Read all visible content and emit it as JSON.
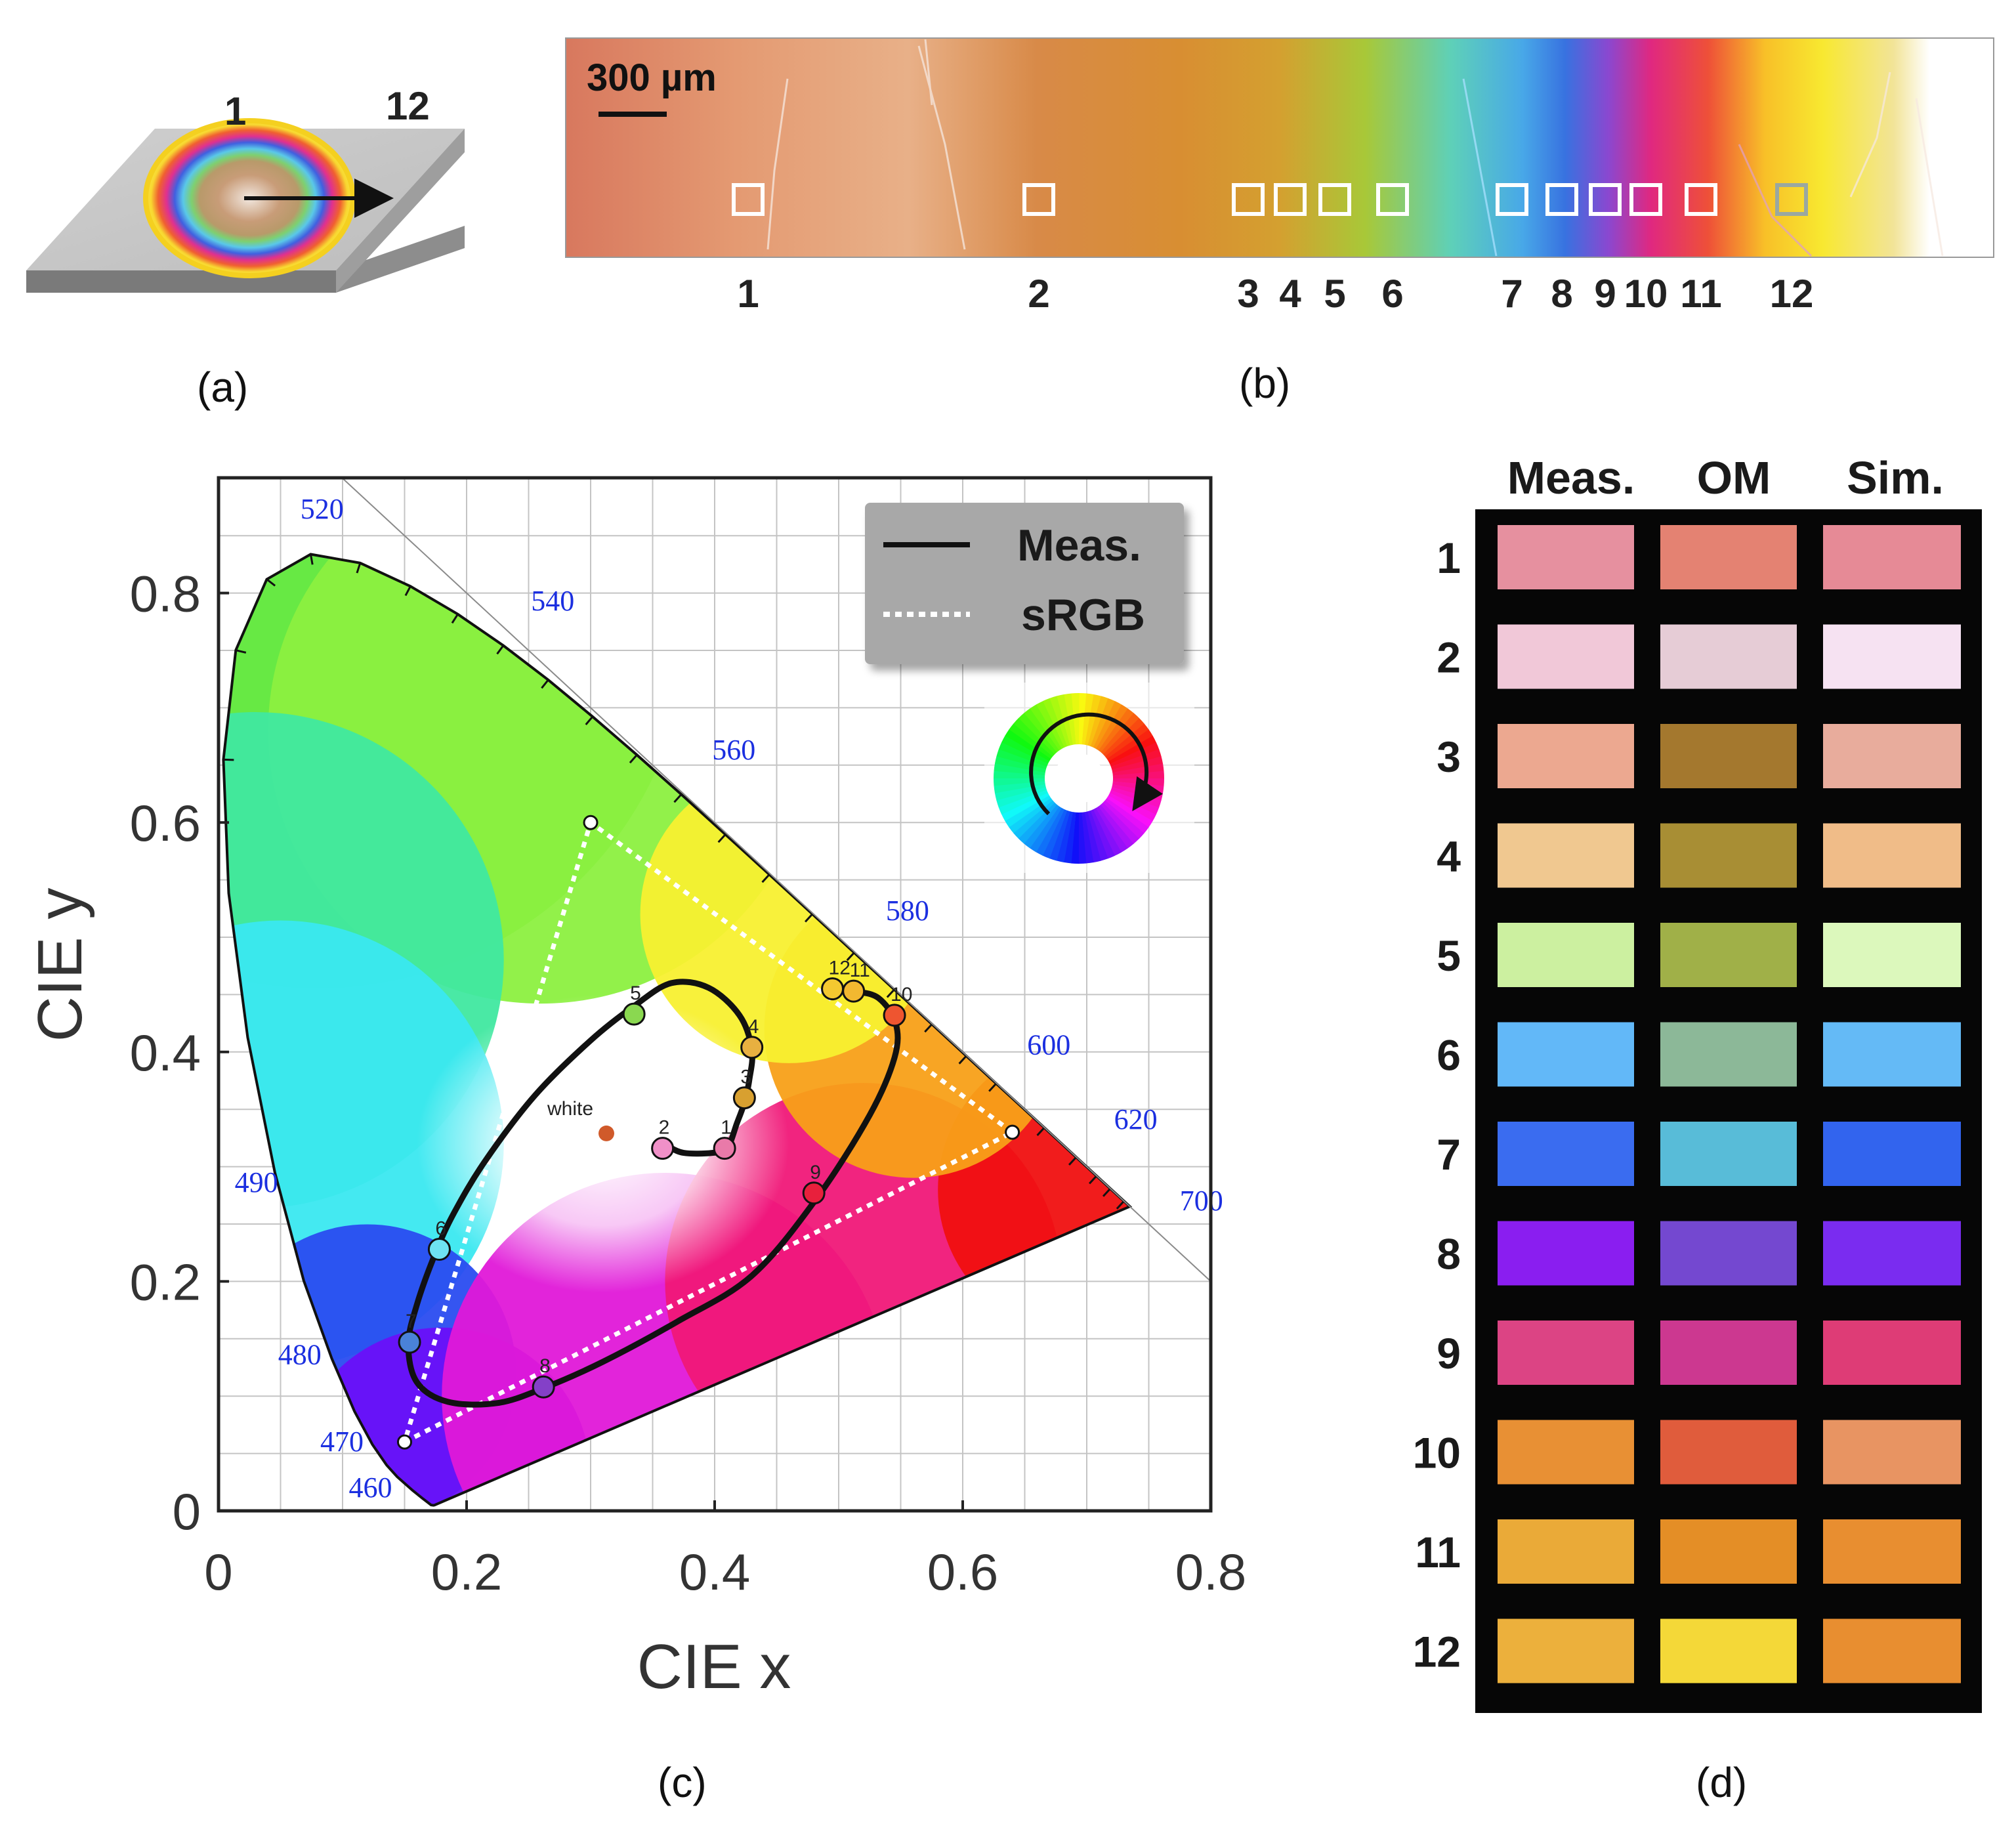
{
  "panels": {
    "a": "(a)",
    "b": "(b)",
    "c": "(c)",
    "d": "(d)"
  },
  "panel_a": {
    "start_label": "1",
    "end_label": "12"
  },
  "panel_b": {
    "scale_bar": "300 µm",
    "positions": [
      "1",
      "2",
      "3",
      "4",
      "5",
      "6",
      "7",
      "8",
      "9",
      "10",
      "11",
      "12"
    ]
  },
  "chart_data": {
    "type": "scatter",
    "title": "",
    "xlabel": "CIE x",
    "ylabel": "CIE y",
    "xlim": [
      0,
      0.8
    ],
    "ylim": [
      0,
      0.9
    ],
    "x_ticks": [
      "0",
      "0.2",
      "0.4",
      "0.6",
      "0.8"
    ],
    "y_ticks": [
      "0",
      "0.2",
      "0.4",
      "0.6",
      "0.8"
    ],
    "grid": true,
    "legend": {
      "position": "top-right",
      "entries": [
        "Meas.",
        "sRGB"
      ]
    },
    "spectral_locus": [
      {
        "nm": 380,
        "x": 0.1741,
        "y": 0.005
      },
      {
        "nm": 400,
        "x": 0.1733,
        "y": 0.0048
      },
      {
        "nm": 420,
        "x": 0.1714,
        "y": 0.0051
      },
      {
        "nm": 440,
        "x": 0.1644,
        "y": 0.0109
      },
      {
        "nm": 450,
        "x": 0.1566,
        "y": 0.0177
      },
      {
        "nm": 460,
        "x": 0.144,
        "y": 0.0297
      },
      {
        "nm": 465,
        "x": 0.1355,
        "y": 0.0399
      },
      {
        "nm": 470,
        "x": 0.1241,
        "y": 0.0578
      },
      {
        "nm": 475,
        "x": 0.1096,
        "y": 0.0868
      },
      {
        "nm": 480,
        "x": 0.0913,
        "y": 0.1327
      },
      {
        "nm": 485,
        "x": 0.0687,
        "y": 0.2007
      },
      {
        "nm": 490,
        "x": 0.0454,
        "y": 0.295
      },
      {
        "nm": 495,
        "x": 0.0235,
        "y": 0.4127
      },
      {
        "nm": 500,
        "x": 0.0082,
        "y": 0.5384
      },
      {
        "nm": 505,
        "x": 0.0039,
        "y": 0.6548
      },
      {
        "nm": 510,
        "x": 0.0139,
        "y": 0.7502
      },
      {
        "nm": 515,
        "x": 0.0389,
        "y": 0.812
      },
      {
        "nm": 520,
        "x": 0.0743,
        "y": 0.8338
      },
      {
        "nm": 525,
        "x": 0.1142,
        "y": 0.8262
      },
      {
        "nm": 530,
        "x": 0.1547,
        "y": 0.8059
      },
      {
        "nm": 535,
        "x": 0.1929,
        "y": 0.7816
      },
      {
        "nm": 540,
        "x": 0.2296,
        "y": 0.7543
      },
      {
        "nm": 545,
        "x": 0.2658,
        "y": 0.7243
      },
      {
        "nm": 550,
        "x": 0.3016,
        "y": 0.6923
      },
      {
        "nm": 555,
        "x": 0.3373,
        "y": 0.6589
      },
      {
        "nm": 560,
        "x": 0.3731,
        "y": 0.6245
      },
      {
        "nm": 565,
        "x": 0.4087,
        "y": 0.5896
      },
      {
        "nm": 570,
        "x": 0.4441,
        "y": 0.5547
      },
      {
        "nm": 575,
        "x": 0.4788,
        "y": 0.5202
      },
      {
        "nm": 580,
        "x": 0.5125,
        "y": 0.4866
      },
      {
        "nm": 585,
        "x": 0.5448,
        "y": 0.4544
      },
      {
        "nm": 590,
        "x": 0.5752,
        "y": 0.4242
      },
      {
        "nm": 595,
        "x": 0.6029,
        "y": 0.3965
      },
      {
        "nm": 600,
        "x": 0.627,
        "y": 0.3725
      },
      {
        "nm": 610,
        "x": 0.6658,
        "y": 0.334
      },
      {
        "nm": 620,
        "x": 0.6915,
        "y": 0.3083
      },
      {
        "nm": 630,
        "x": 0.7079,
        "y": 0.292
      },
      {
        "nm": 640,
        "x": 0.719,
        "y": 0.2809
      },
      {
        "nm": 660,
        "x": 0.73,
        "y": 0.27
      },
      {
        "nm": 700,
        "x": 0.7347,
        "y": 0.2653
      }
    ],
    "wavelength_labels": [
      {
        "text": "460",
        "x": 0.105,
        "y": 0.012
      },
      {
        "text": "470",
        "x": 0.082,
        "y": 0.052
      },
      {
        "text": "480",
        "x": 0.048,
        "y": 0.128
      },
      {
        "text": "490",
        "x": 0.013,
        "y": 0.278
      },
      {
        "text": "520",
        "x": 0.066,
        "y": 0.865
      },
      {
        "text": "540",
        "x": 0.252,
        "y": 0.785
      },
      {
        "text": "560",
        "x": 0.398,
        "y": 0.655
      },
      {
        "text": "580",
        "x": 0.538,
        "y": 0.515
      },
      {
        "text": "600",
        "x": 0.652,
        "y": 0.398
      },
      {
        "text": "620",
        "x": 0.722,
        "y": 0.333
      },
      {
        "text": "700",
        "x": 0.775,
        "y": 0.262
      }
    ],
    "srgb_primaries": {
      "red": [
        0.64,
        0.33
      ],
      "green": [
        0.3,
        0.6
      ],
      "blue": [
        0.15,
        0.06
      ]
    },
    "white_point": {
      "label": "white",
      "x": 0.3127,
      "y": 0.329,
      "color": "#d05a2a"
    },
    "measured_curve": [
      [
        0.362,
        0.318
      ],
      [
        0.375,
        0.312
      ],
      [
        0.398,
        0.312
      ],
      [
        0.41,
        0.316
      ],
      [
        0.418,
        0.338
      ],
      [
        0.424,
        0.356
      ],
      [
        0.428,
        0.376
      ],
      [
        0.43,
        0.402
      ],
      [
        0.42,
        0.432
      ],
      [
        0.395,
        0.456
      ],
      [
        0.365,
        0.46
      ],
      [
        0.335,
        0.44
      ],
      [
        0.3,
        0.41
      ],
      [
        0.255,
        0.362
      ],
      [
        0.215,
        0.305
      ],
      [
        0.19,
        0.26
      ],
      [
        0.175,
        0.225
      ],
      [
        0.16,
        0.18
      ],
      [
        0.153,
        0.145
      ],
      [
        0.16,
        0.112
      ],
      [
        0.185,
        0.095
      ],
      [
        0.225,
        0.094
      ],
      [
        0.262,
        0.107
      ],
      [
        0.31,
        0.13
      ],
      [
        0.37,
        0.165
      ],
      [
        0.43,
        0.205
      ],
      [
        0.482,
        0.272
      ],
      [
        0.525,
        0.345
      ],
      [
        0.545,
        0.395
      ],
      [
        0.546,
        0.425
      ],
      [
        0.532,
        0.447
      ],
      [
        0.512,
        0.453
      ],
      [
        0.492,
        0.455
      ]
    ],
    "measured_points": [
      {
        "label": "1",
        "x": 0.408,
        "y": 0.316,
        "color": "#e97aa9"
      },
      {
        "label": "2",
        "x": 0.358,
        "y": 0.316,
        "color": "#f090c8"
      },
      {
        "label": "3",
        "x": 0.424,
        "y": 0.36,
        "color": "#d8a030"
      },
      {
        "label": "4",
        "x": 0.43,
        "y": 0.404,
        "color": "#e8b040"
      },
      {
        "label": "5",
        "x": 0.335,
        "y": 0.433,
        "color": "#8ad850"
      },
      {
        "label": "6",
        "x": 0.178,
        "y": 0.228,
        "color": "#6ee2f2"
      },
      {
        "label": "7",
        "x": 0.154,
        "y": 0.147,
        "color": "#4a82d8"
      },
      {
        "label": "8",
        "x": 0.262,
        "y": 0.108,
        "color": "#8440c8"
      },
      {
        "label": "9",
        "x": 0.48,
        "y": 0.277,
        "color": "#e8203c"
      },
      {
        "label": "10",
        "x": 0.545,
        "y": 0.432,
        "color": "#ee5530"
      },
      {
        "label": "11",
        "x": 0.512,
        "y": 0.453,
        "color": "#f2b830"
      },
      {
        "label": "12",
        "x": 0.495,
        "y": 0.455,
        "color": "#f4c830"
      }
    ]
  },
  "swatches": {
    "headers": [
      "Meas.",
      "OM",
      "Sim."
    ],
    "rows": [
      {
        "label": "1",
        "colors": [
          "#e6909f",
          "#e48272",
          "#e68a96"
        ]
      },
      {
        "label": "2",
        "colors": [
          "#f1c8d8",
          "#e6ccd6",
          "#f6e2f2"
        ]
      },
      {
        "label": "3",
        "colors": [
          "#eca890",
          "#a4782e",
          "#e8ac9c"
        ]
      },
      {
        "label": "4",
        "colors": [
          "#f0c890",
          "#a88e34",
          "#f0bc88"
        ]
      },
      {
        "label": "5",
        "colors": [
          "#ccf0a0",
          "#a0b048",
          "#dcf8bc"
        ]
      },
      {
        "label": "6",
        "colors": [
          "#62b8f8",
          "#8cb898",
          "#64baf6"
        ]
      },
      {
        "label": "7",
        "colors": [
          "#3a6cf0",
          "#58bcd8",
          "#3264ee"
        ]
      },
      {
        "label": "8",
        "colors": [
          "#8a1ef0",
          "#7448d0",
          "#7a2cf0"
        ]
      },
      {
        "label": "9",
        "colors": [
          "#dc4484",
          "#cc3890",
          "#de3c76"
        ]
      },
      {
        "label": "10",
        "colors": [
          "#e89034",
          "#e05c3c",
          "#e89462"
        ]
      },
      {
        "label": "11",
        "colors": [
          "#eaaa38",
          "#e48e26",
          "#e88e30"
        ]
      },
      {
        "label": "12",
        "colors": [
          "#ecb03c",
          "#f4d838",
          "#e88e30"
        ]
      }
    ]
  }
}
